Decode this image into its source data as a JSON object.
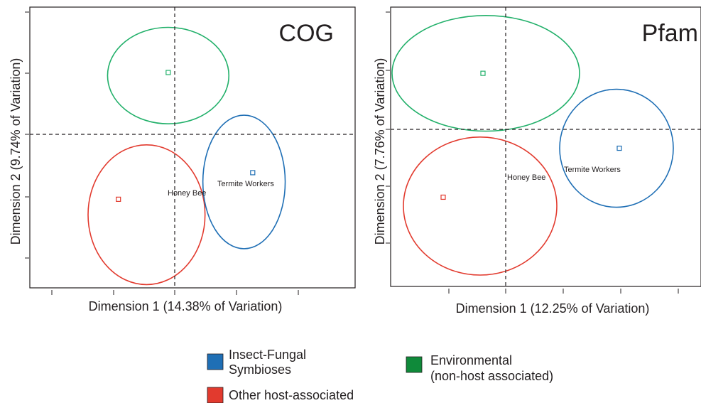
{
  "chart_data": [
    {
      "type": "scatter",
      "title": "COG",
      "xlabel": "Dimension 1 (14.38% of Variation)",
      "ylabel": "Dimension 2 (9.74% of Variation)",
      "grid": false,
      "reference_lines": {
        "x": 0,
        "y": 0
      },
      "points": [
        {
          "group": "Environmental",
          "x": -0.15,
          "y": 1.0,
          "label": ""
        },
        {
          "group": "Other host-associated",
          "x": -1.3,
          "y": -1.05,
          "label": ""
        },
        {
          "group": "Insect-Fungal Symbioses",
          "x": 1.8,
          "y": -0.62,
          "label": "Termite Workers"
        },
        {
          "group": "Other host-associated",
          "x": 0.05,
          "y": -0.9,
          "label": "Honey Bee"
        }
      ],
      "ellipses": [
        {
          "group": "Environmental",
          "cx": -0.15,
          "cy": 0.95,
          "rx": 1.4,
          "ry": 0.78
        },
        {
          "group": "Other host-associated",
          "cx": -0.65,
          "cy": -1.3,
          "rx": 1.35,
          "ry": 1.13
        },
        {
          "group": "Insect-Fungal Symbioses",
          "cx": 1.6,
          "cy": -0.77,
          "rx": 0.95,
          "ry": 1.08
        }
      ]
    },
    {
      "type": "scatter",
      "title": "Pfam",
      "xlabel": "Dimension 1 (12.25% of Variation)",
      "ylabel": "Dimension 2 (7.76% of Variation)",
      "grid": false,
      "reference_lines": {
        "x": 0,
        "y": 0
      },
      "points": [
        {
          "group": "Environmental",
          "x": -0.4,
          "y": 0.95,
          "label": ""
        },
        {
          "group": "Other host-associated",
          "x": -1.1,
          "y": -1.15,
          "label": ""
        },
        {
          "group": "Insect-Fungal Symbioses",
          "x": 2.0,
          "y": -0.32,
          "label": "Termite Workers"
        },
        {
          "group": "Other host-associated",
          "x": 0.05,
          "y": -0.78,
          "label": "Honey Bee"
        }
      ],
      "ellipses": [
        {
          "group": "Environmental",
          "cx": -0.35,
          "cy": 0.95,
          "rx": 1.65,
          "ry": 0.98
        },
        {
          "group": "Other host-associated",
          "cx": -0.45,
          "cy": -1.3,
          "rx": 1.35,
          "ry": 1.17
        },
        {
          "group": "Insect-Fungal Symbioses",
          "cx": 1.95,
          "cy": -0.32,
          "rx": 1.0,
          "ry": 1.0
        }
      ]
    }
  ],
  "legend": {
    "placement": "bottom",
    "items": [
      {
        "group": "Insect-Fungal Symbioses",
        "line1": "Insect-Fungal",
        "line2": "Symbioses",
        "color": "#1f6fb5"
      },
      {
        "group": "Environmental",
        "line1": "Environmental",
        "line2": "(non-host associated)",
        "color": "#0f8a3a"
      },
      {
        "group": "Other host-associated",
        "line1": "Other host-associated",
        "line2": "",
        "color": "#e23a2e"
      }
    ]
  },
  "colors": {
    "Insect-Fungal Symbioses": "#1f6fb5",
    "Other host-associated": "#e23a2e",
    "Environmental": "#22b06a",
    "Environmental-legend": "#0f8a3a",
    "axis": "#231f20"
  }
}
